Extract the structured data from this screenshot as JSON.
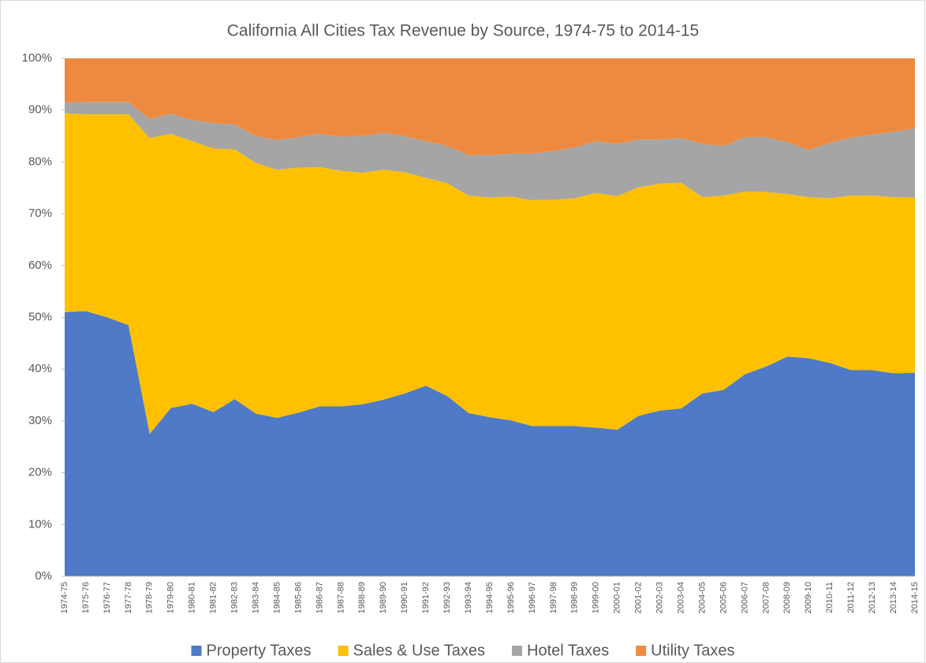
{
  "chart_data": {
    "type": "stacked_area_100",
    "title": "California All Cities Tax Revenue by Source, 1974-75 to 2014-15",
    "categories": [
      "1974-75",
      "1975-76",
      "1976-77",
      "1977-78",
      "1978-79",
      "1979-80",
      "1980-81",
      "1981-82",
      "1982-83",
      "1983-84",
      "1984-85",
      "1985-86",
      "1986-87",
      "1987-88",
      "1988-89",
      "1989-90",
      "1990-91",
      "1991-92",
      "1992-93",
      "1993-94",
      "1994-95",
      "1995-96",
      "1996-97",
      "1997-98",
      "1998-99",
      "1999-00",
      "2000-01",
      "2001-02",
      "2002-03",
      "2003-04",
      "2004-05",
      "2005-06",
      "2006-07",
      "2007-08",
      "2008-09",
      "2009-10",
      "2010-11",
      "2011-12",
      "2012-13",
      "2013-14",
      "2014-15"
    ],
    "series": [
      {
        "name": "Property Taxes",
        "color": "#4e7ac7",
        "values": [
          51.0,
          51.2,
          50.0,
          48.5,
          27.5,
          32.5,
          33.3,
          31.7,
          34.2,
          31.4,
          30.6,
          31.6,
          32.8,
          32.8,
          33.2,
          34.1,
          35.3,
          36.8,
          34.8,
          31.5,
          30.7,
          30.1,
          29.0,
          29.0,
          29.0,
          28.7,
          28.3,
          31.0,
          32.0,
          32.4,
          35.3,
          36.0,
          39.0,
          40.5,
          42.4,
          42.1,
          41.2,
          39.8,
          39.8,
          39.2,
          39.3
        ]
      },
      {
        "name": "Sales & Use Taxes",
        "color": "#ffc000",
        "values": [
          38.4,
          38.0,
          39.2,
          40.7,
          57.1,
          52.9,
          50.7,
          50.9,
          48.2,
          48.4,
          47.9,
          47.3,
          46.2,
          45.5,
          44.7,
          44.4,
          42.7,
          40.1,
          41.1,
          42.0,
          42.4,
          43.2,
          43.6,
          43.7,
          44.0,
          45.3,
          45.1,
          44.1,
          43.8,
          43.6,
          37.9,
          37.5,
          35.3,
          33.7,
          31.4,
          31.1,
          31.8,
          33.7,
          33.7,
          34.0,
          33.8
        ]
      },
      {
        "name": "Hotel Taxes",
        "color": "#a5a5a5",
        "values": [
          2.1,
          2.4,
          2.4,
          2.4,
          3.7,
          3.9,
          4.1,
          4.9,
          4.8,
          5.2,
          5.7,
          5.9,
          6.4,
          6.6,
          7.1,
          7.1,
          7.0,
          7.1,
          7.2,
          7.8,
          8.2,
          8.3,
          9.0,
          9.4,
          9.8,
          10.0,
          10.1,
          9.2,
          8.5,
          8.6,
          10.3,
          9.6,
          10.5,
          10.6,
          10.0,
          9.1,
          10.7,
          11.2,
          11.8,
          12.6,
          13.4
        ]
      },
      {
        "name": "Utility Taxes",
        "color": "#ee8a3f",
        "values": [
          8.5,
          8.4,
          8.4,
          8.4,
          11.7,
          10.7,
          11.9,
          12.5,
          12.8,
          15.0,
          15.8,
          15.2,
          14.6,
          15.1,
          15.0,
          14.4,
          15.0,
          16.0,
          16.9,
          18.7,
          18.7,
          18.4,
          18.4,
          17.9,
          17.2,
          16.0,
          16.5,
          15.7,
          15.7,
          15.4,
          16.5,
          16.9,
          15.2,
          15.2,
          16.2,
          17.7,
          16.3,
          15.3,
          14.7,
          14.2,
          13.5
        ]
      }
    ],
    "ylim": [
      0,
      100
    ],
    "yticks": [
      {
        "value": 0,
        "label": "0%"
      },
      {
        "value": 10,
        "label": "10%"
      },
      {
        "value": 20,
        "label": "20%"
      },
      {
        "value": 30,
        "label": "30%"
      },
      {
        "value": 40,
        "label": "40%"
      },
      {
        "value": 50,
        "label": "50%"
      },
      {
        "value": 60,
        "label": "60%"
      },
      {
        "value": 70,
        "label": "70%"
      },
      {
        "value": 80,
        "label": "80%"
      },
      {
        "value": 90,
        "label": "90%"
      },
      {
        "value": 100,
        "label": "100%"
      }
    ],
    "grid": false,
    "legend": "bottom"
  }
}
